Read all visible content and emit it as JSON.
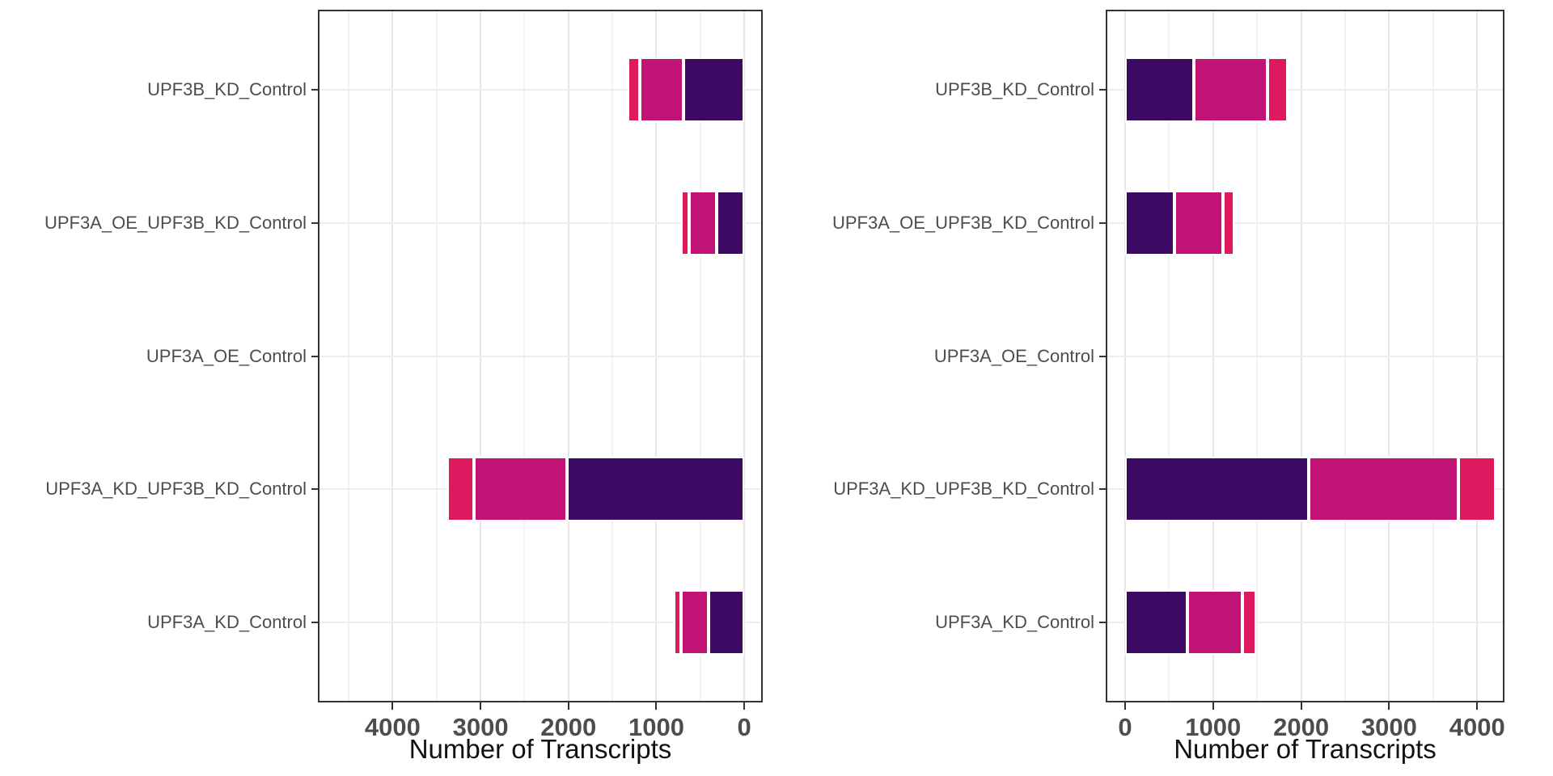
{
  "chart_data": [
    {
      "type": "bar",
      "orientation": "horizontal",
      "stacked": true,
      "title": "",
      "xlabel": "Number of Transcripts",
      "ylabel": "",
      "axis_reversed": true,
      "x_ticks": [
        4000,
        3000,
        2000,
        1000,
        0
      ],
      "x_minor_ticks": [
        4500,
        3500,
        2500,
        1500,
        500
      ],
      "x_edge_values": [
        4850,
        -210
      ],
      "grid": true,
      "legend": "none",
      "categories": [
        "UPF3B_KD_Control",
        "UPF3A_OE_UPF3B_KD_Control",
        "UPF3A_OE_Control",
        "UPF3A_KD_UPF3B_KD_Control",
        "UPF3A_KD_Control"
      ],
      "series": [
        {
          "name": "dark-purple",
          "color": "#3D0A63",
          "values": [
            690,
            310,
            0,
            2015,
            405
          ]
        },
        {
          "name": "magenta",
          "color": "#C11376",
          "values": [
            500,
            320,
            0,
            1060,
            315
          ]
        },
        {
          "name": "crimson",
          "color": "#DE195F",
          "values": [
            135,
            90,
            0,
            305,
            85
          ]
        }
      ],
      "totals": [
        1325,
        720,
        0,
        3380,
        805
      ]
    },
    {
      "type": "bar",
      "orientation": "horizontal",
      "stacked": true,
      "title": "",
      "xlabel": "Number of Transcripts",
      "ylabel": "",
      "axis_reversed": false,
      "x_ticks": [
        0,
        1000,
        2000,
        3000,
        4000
      ],
      "x_minor_ticks": [
        500,
        1500,
        2500,
        3500
      ],
      "x_edge_values": [
        -220,
        4310
      ],
      "grid": true,
      "legend": "none",
      "categories": [
        "UPF3B_KD_Control",
        "UPF3A_OE_UPF3B_KD_Control",
        "UPF3A_OE_Control",
        "UPF3A_KD_UPF3B_KD_Control",
        "UPF3A_KD_Control"
      ],
      "series": [
        {
          "name": "dark-purple",
          "color": "#3D0A63",
          "values": [
            780,
            560,
            0,
            2085,
            710
          ]
        },
        {
          "name": "magenta",
          "color": "#C11376",
          "values": [
            840,
            555,
            0,
            1705,
            625
          ]
        },
        {
          "name": "crimson",
          "color": "#DE195F",
          "values": [
            230,
            125,
            0,
            420,
            155
          ]
        }
      ],
      "totals": [
        1850,
        1240,
        0,
        4210,
        1490
      ]
    }
  ],
  "styles": {
    "background": "#FFFFFF",
    "panel_border": "#333333",
    "grid_major": "#E7E7E7",
    "grid_minor": "#F2F2F2",
    "tick_color": "#333333",
    "axis_text_color": "#4D4D4D",
    "title_color": "#111111",
    "segment_border": "#FFFFFF"
  }
}
